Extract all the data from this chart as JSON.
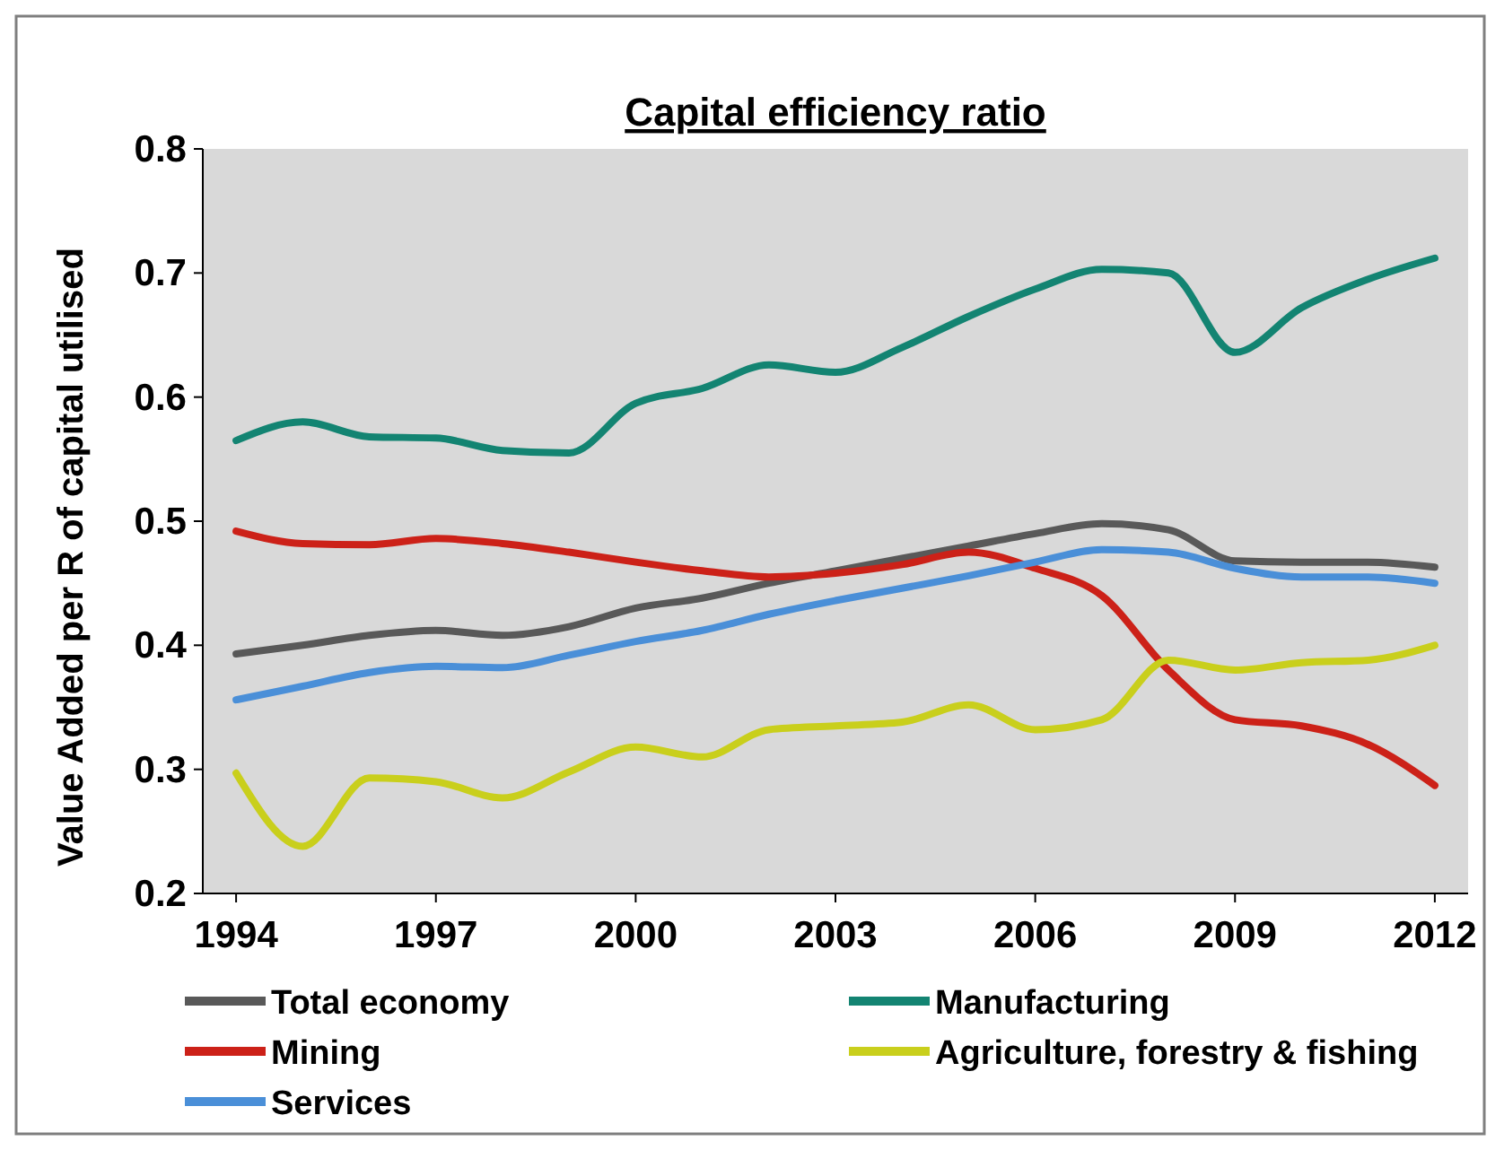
{
  "chart_data": {
    "type": "line",
    "title": "Capital efficiency ratio",
    "ylabel": "Value Added per R of capital utilised",
    "x": [
      1994,
      1995,
      1996,
      1997,
      1998,
      1999,
      2000,
      2001,
      2002,
      2003,
      2004,
      2005,
      2006,
      2007,
      2008,
      2009,
      2010,
      2011,
      2012
    ],
    "xlim": [
      1993.5,
      2012.5
    ],
    "xticks": [
      1994,
      1997,
      2000,
      2003,
      2006,
      2009,
      2012
    ],
    "ylim": [
      0.2,
      0.8
    ],
    "yticks": [
      0.2,
      0.3,
      0.4,
      0.5,
      0.6,
      0.7,
      0.8
    ],
    "grid": false,
    "legend": "bottom",
    "marker": "none",
    "line_style": "solid",
    "series": [
      {
        "name": "Total economy",
        "color": "#595959",
        "values": [
          0.393,
          0.4,
          0.408,
          0.412,
          0.408,
          0.415,
          0.43,
          0.438,
          0.45,
          0.46,
          0.47,
          0.48,
          0.49,
          0.498,
          0.493,
          0.468,
          0.467,
          0.467,
          0.463
        ]
      },
      {
        "name": "Manufacturing",
        "color": "#138472",
        "values": [
          0.565,
          0.58,
          0.568,
          0.567,
          0.557,
          0.555,
          0.595,
          0.607,
          0.626,
          0.62,
          0.64,
          0.665,
          0.687,
          0.703,
          0.7,
          0.636,
          0.672,
          0.695,
          0.712
        ]
      },
      {
        "name": "Mining",
        "color": "#cc2118",
        "values": [
          0.492,
          0.482,
          0.481,
          0.486,
          0.482,
          0.475,
          0.467,
          0.46,
          0.455,
          0.458,
          0.465,
          0.475,
          0.462,
          0.44,
          0.38,
          0.34,
          0.335,
          0.32,
          0.287
        ]
      },
      {
        "name": "Agriculture, forestry & fishing",
        "color": "#c9cf1c",
        "values": [
          0.297,
          0.238,
          0.293,
          0.29,
          0.277,
          0.298,
          0.318,
          0.31,
          0.332,
          0.335,
          0.338,
          0.352,
          0.332,
          0.34,
          0.388,
          0.38,
          0.386,
          0.388,
          0.4
        ]
      },
      {
        "name": "Services",
        "color": "#4a8fd8",
        "values": [
          0.356,
          0.367,
          0.378,
          0.383,
          0.382,
          0.392,
          0.403,
          0.412,
          0.425,
          0.436,
          0.446,
          0.456,
          0.467,
          0.477,
          0.475,
          0.462,
          0.455,
          0.455,
          0.45
        ]
      }
    ]
  }
}
